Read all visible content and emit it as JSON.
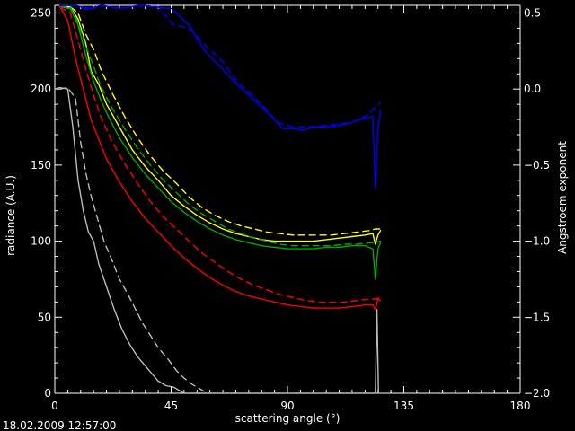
{
  "timestamp": "18.02.2009 12:57:00",
  "chart_data": {
    "type": "line",
    "xlabel": "scattering angle (°)",
    "ylabel_left": "radiance (A.U.)",
    "ylabel_right": "Angstroem exponent",
    "xlim": [
      0,
      180
    ],
    "ylim_left": [
      0,
      255
    ],
    "ylim_right": [
      -2.0,
      0.55
    ],
    "x_ticks": [
      0,
      45,
      90,
      135,
      180
    ],
    "x_tick_labels": [
      "0",
      "45",
      "90",
      "135",
      "180"
    ],
    "y_left_ticks": [
      0,
      50,
      100,
      150,
      200,
      250
    ],
    "y_left_tick_labels": [
      "0",
      "50",
      "100",
      "150",
      "200",
      "250"
    ],
    "y_right_ticks": [
      -2.0,
      -1.5,
      -1.0,
      -0.5,
      0.0,
      0.5
    ],
    "y_right_tick_labels": [
      "−2.0",
      "−1.5",
      "−1.0",
      "−0.5",
      "0.0",
      "0.5"
    ],
    "grid": false,
    "series": [
      {
        "color": "#0000ff",
        "style": "solid",
        "x": [
          2,
          8,
          13,
          18,
          25,
          33,
          45,
          52,
          58,
          65,
          70,
          75,
          80,
          85,
          88,
          92,
          96,
          100,
          105,
          110,
          115,
          120,
          123,
          124,
          125,
          126
        ],
        "values": [
          255,
          255,
          253,
          255,
          253,
          255,
          253,
          242,
          225,
          213,
          204,
          196,
          188,
          180,
          174,
          174,
          173,
          175,
          175,
          176,
          178,
          181,
          182,
          135,
          175,
          186
        ]
      },
      {
        "color": "#0000ff",
        "style": "dashed",
        "x": [
          2,
          8,
          13,
          18,
          25,
          33,
          40,
          46,
          52,
          58,
          65,
          70,
          75,
          80,
          86,
          92,
          98,
          104,
          110,
          115,
          120,
          124,
          126
        ],
        "values": [
          255,
          255,
          252,
          255,
          253,
          255,
          254,
          242,
          240,
          229,
          218,
          206,
          198,
          190,
          178,
          175,
          175,
          176,
          177,
          178,
          182,
          188,
          191
        ]
      },
      {
        "color": "#ffff00",
        "style": "solid",
        "x": [
          2,
          6,
          9,
          12,
          14,
          17,
          20,
          25,
          30,
          35,
          40,
          45,
          50,
          55,
          60,
          65,
          70,
          75,
          80,
          85,
          90,
          95,
          100,
          105,
          110,
          115,
          120,
          123,
          124,
          125,
          126
        ],
        "values": [
          254,
          254,
          246,
          230,
          212,
          203,
          190,
          175,
          160,
          149,
          140,
          130,
          123,
          117,
          112,
          108,
          105,
          103,
          101,
          100,
          100,
          100,
          100,
          101,
          102,
          103,
          104,
          105,
          98,
          104,
          107
        ]
      },
      {
        "color": "#ffff00",
        "style": "dashed",
        "x": [
          2,
          6,
          9,
          12,
          15,
          18,
          22,
          27,
          32,
          37,
          42,
          47,
          52,
          57,
          62,
          67,
          72,
          77,
          82,
          87,
          92,
          97,
          102,
          107,
          112,
          117,
          122,
          124,
          126
        ],
        "values": [
          254,
          254,
          250,
          236,
          226,
          212,
          198,
          182,
          168,
          156,
          146,
          138,
          129,
          122,
          117,
          113,
          110,
          108,
          106,
          105,
          104,
          104,
          104,
          104,
          105,
          106,
          107,
          108,
          108
        ]
      },
      {
        "color": "#00aa00",
        "style": "solid",
        "x": [
          2,
          6,
          9,
          12,
          15,
          18,
          21,
          25,
          30,
          35,
          40,
          45,
          50,
          55,
          60,
          65,
          70,
          75,
          80,
          85,
          90,
          95,
          100,
          105,
          110,
          115,
          120,
          123,
          124,
          125,
          126
        ],
        "values": [
          254,
          253,
          242,
          222,
          205,
          192,
          181,
          168,
          155,
          144,
          135,
          126,
          119,
          113,
          108,
          104,
          101,
          99,
          97,
          96,
          95,
          95,
          95,
          96,
          96,
          97,
          97,
          95,
          75,
          95,
          99
        ]
      },
      {
        "color": "#00aa00",
        "style": "dashed",
        "x": [
          2,
          6,
          9,
          12,
          15,
          18,
          22,
          27,
          32,
          37,
          42,
          47,
          52,
          57,
          62,
          67,
          72,
          77,
          82,
          87,
          92,
          97,
          102,
          107,
          112,
          117,
          122,
          124,
          126
        ],
        "values": [
          254,
          254,
          244,
          228,
          215,
          201,
          188,
          174,
          161,
          150,
          140,
          132,
          124,
          118,
          113,
          108,
          105,
          102,
          100,
          98,
          97,
          97,
          97,
          97,
          98,
          98,
          99,
          99,
          100
        ]
      },
      {
        "color": "#ff0000",
        "style": "solid",
        "x": [
          2,
          5,
          8,
          11,
          14,
          17,
          20,
          25,
          30,
          35,
          40,
          45,
          50,
          55,
          60,
          65,
          70,
          75,
          80,
          85,
          90,
          95,
          100,
          105,
          110,
          115,
          120,
          123,
          124,
          125,
          126
        ],
        "values": [
          254,
          245,
          220,
          200,
          180,
          167,
          154,
          139,
          126,
          115,
          106,
          97,
          89,
          82,
          76,
          71,
          67,
          64,
          62,
          60,
          58,
          57,
          56,
          56,
          56,
          57,
          58,
          58,
          55,
          62,
          61
        ]
      },
      {
        "color": "#ff0000",
        "style": "dashed",
        "x": [
          2,
          6,
          9,
          12,
          15,
          18,
          22,
          27,
          32,
          37,
          42,
          47,
          52,
          57,
          62,
          67,
          72,
          77,
          82,
          87,
          92,
          97,
          102,
          107,
          112,
          117,
          122,
          124,
          126
        ],
        "values": [
          254,
          250,
          232,
          213,
          196,
          181,
          166,
          151,
          138,
          126,
          116,
          108,
          100,
          92,
          86,
          80,
          75,
          71,
          68,
          65,
          63,
          61,
          60,
          60,
          60,
          61,
          62,
          62,
          63
        ]
      },
      {
        "color": "#bbbbbb",
        "style": "solid",
        "x": [
          0,
          2,
          5,
          7,
          9,
          11,
          13,
          15,
          17,
          20,
          23,
          26,
          29,
          32,
          35,
          38,
          40,
          43,
          46,
          48,
          50,
          124,
          124.6,
          125.2
        ],
        "values": [
          200,
          201,
          200,
          175,
          140,
          120,
          106,
          100,
          85,
          70,
          55,
          42,
          32,
          24,
          18,
          12,
          8,
          5,
          4,
          2,
          0,
          0,
          55,
          0
        ]
      },
      {
        "color": "#bbbbbb",
        "style": "dashed",
        "x": [
          2,
          5,
          8,
          10,
          12,
          14,
          16,
          19,
          22,
          25,
          28,
          31,
          34,
          37,
          40,
          44,
          47,
          50,
          53,
          56,
          59
        ],
        "values": [
          200,
          201,
          194,
          165,
          145,
          130,
          118,
          100,
          88,
          75,
          66,
          56,
          46,
          38,
          30,
          22,
          15,
          10,
          6,
          3,
          0
        ]
      }
    ]
  }
}
